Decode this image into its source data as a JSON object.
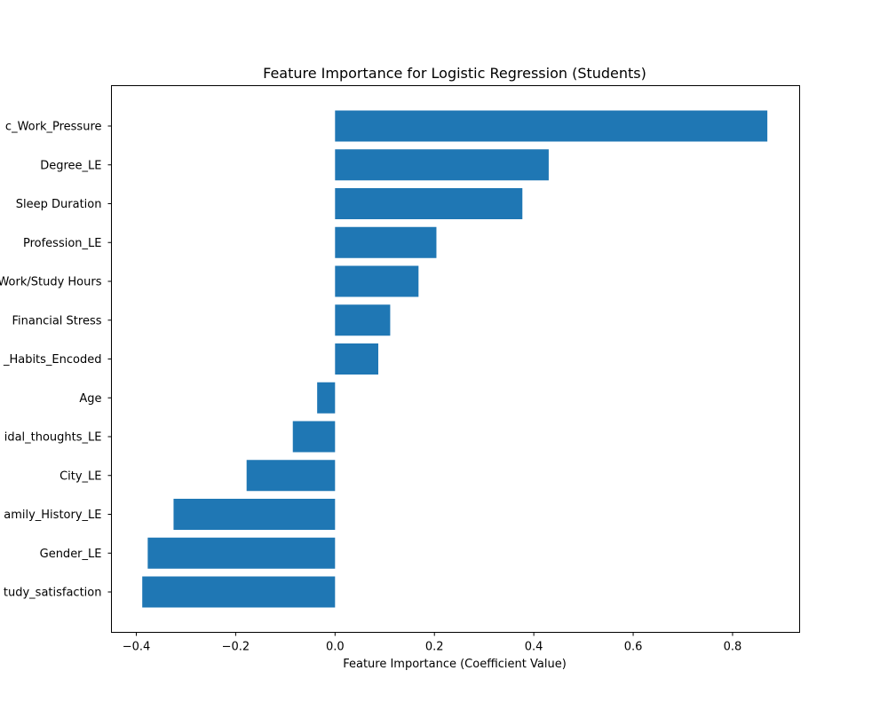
{
  "chart_data": {
    "type": "bar",
    "orientation": "horizontal",
    "title": "Feature Importance for Logistic Regression (Students)",
    "xlabel": "Feature Importance (Coefficient Value)",
    "ylabel": "",
    "xlim": [
      -0.45,
      0.935
    ],
    "x_ticks": [
      -0.4,
      -0.2,
      0.0,
      0.2,
      0.4,
      0.6,
      0.8
    ],
    "x_tick_labels": [
      "−0.4",
      "−0.2",
      "0.0",
      "0.2",
      "0.4",
      "0.6",
      "0.8"
    ],
    "grid": false,
    "bar_color": "#1f77b4",
    "categories": [
      "c_Work_Pressure",
      "Degree_LE",
      "Sleep Duration",
      "Profession_LE",
      "Work/Study Hours",
      "Financial Stress",
      "_Habits_Encoded",
      "Age",
      "idal_thoughts_LE",
      "City_LE",
      "amily_History_LE",
      "Gender_LE",
      "tudy_satisfaction"
    ],
    "values": [
      0.87,
      0.43,
      0.377,
      0.204,
      0.168,
      0.111,
      0.087,
      -0.036,
      -0.085,
      -0.178,
      -0.325,
      -0.377,
      -0.388
    ]
  }
}
